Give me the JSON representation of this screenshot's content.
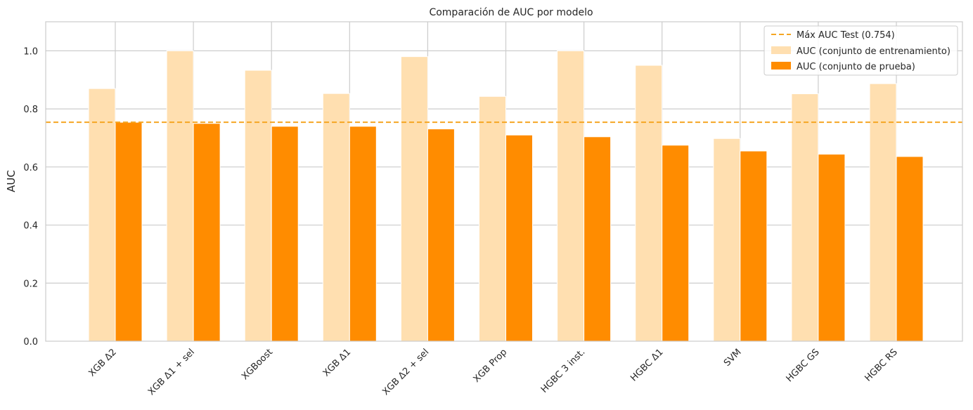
{
  "chart_data": {
    "type": "bar",
    "title": "Comparación de AUC por modelo",
    "xlabel": "",
    "ylabel": "AUC",
    "ylim": [
      0,
      1.1
    ],
    "yticks": [
      0.0,
      0.2,
      0.4,
      0.6,
      0.8,
      1.0
    ],
    "ytick_labels": [
      "0.0",
      "0.2",
      "0.4",
      "0.6",
      "0.8",
      "1.0"
    ],
    "grid": true,
    "legend_position": "top-right",
    "categories": [
      "XGB Δ2",
      "XGB Δ1 + sel",
      "XGBoost",
      "XGB Δ1",
      "XGB Δ2 + sel",
      "XGB Prop",
      "HGBC 3 inst.",
      "HGBC Δ1",
      "SVM",
      "HGBC GS",
      "HGBC RS"
    ],
    "series": [
      {
        "name": "AUC (conjunto de entrenamiento)",
        "color": "#ffdfb0",
        "values": [
          0.87,
          1.0,
          0.933,
          0.853,
          0.98,
          0.843,
          1.0,
          0.95,
          0.698,
          0.852,
          0.887
        ]
      },
      {
        "name": "AUC (conjunto de prueba)",
        "color": "#ff8c00",
        "values": [
          0.754,
          0.75,
          0.74,
          0.74,
          0.731,
          0.71,
          0.704,
          0.675,
          0.655,
          0.644,
          0.636
        ]
      }
    ],
    "reference_line": {
      "label": "Máx AUC Test (0.754)",
      "value": 0.754,
      "color": "#f5a623",
      "style": "dashed"
    }
  }
}
